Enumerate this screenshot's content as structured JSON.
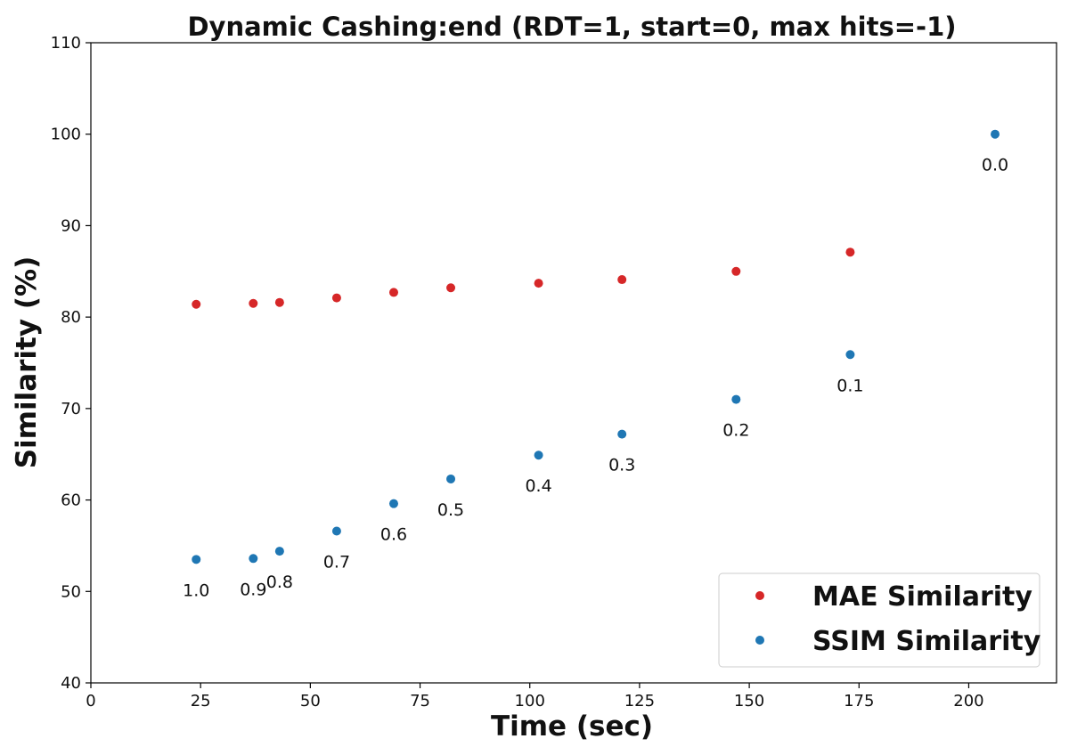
{
  "chart_data": {
    "type": "scatter",
    "title": "Dynamic Cashing:end (RDT=1, start=0, max hits=-1)",
    "xlabel": "Time (sec)",
    "ylabel": "Similarity (%)",
    "xlim": [
      0,
      220
    ],
    "ylim": [
      40,
      110
    ],
    "xticks": [
      "0",
      "25",
      "50",
      "75",
      "100",
      "125",
      "150",
      "175",
      "200"
    ],
    "yticks": [
      "40",
      "50",
      "60",
      "70",
      "80",
      "90",
      "100",
      "110"
    ],
    "grid": false,
    "legend_position": "bottom-right",
    "series": [
      {
        "name": "MAE Similarity",
        "color": "#d62728",
        "x": [
          24,
          37,
          43,
          56,
          69,
          82,
          102,
          121,
          147,
          173
        ],
        "y": [
          81.4,
          81.5,
          81.6,
          82.1,
          82.7,
          83.2,
          83.7,
          84.1,
          85.0,
          87.1
        ]
      },
      {
        "name": "SSIM Similarity",
        "color": "#1f77b4",
        "x": [
          24,
          37,
          43,
          56,
          69,
          82,
          102,
          121,
          147,
          173,
          206
        ],
        "y": [
          53.5,
          53.6,
          54.4,
          56.6,
          59.6,
          62.3,
          64.9,
          67.2,
          71.0,
          75.9,
          100.0
        ],
        "labels": [
          "1.0",
          "0.9",
          "0.8",
          "0.7",
          "0.6",
          "0.5",
          "0.4",
          "0.3",
          "0.2",
          "0.1",
          "0.0"
        ]
      }
    ]
  }
}
